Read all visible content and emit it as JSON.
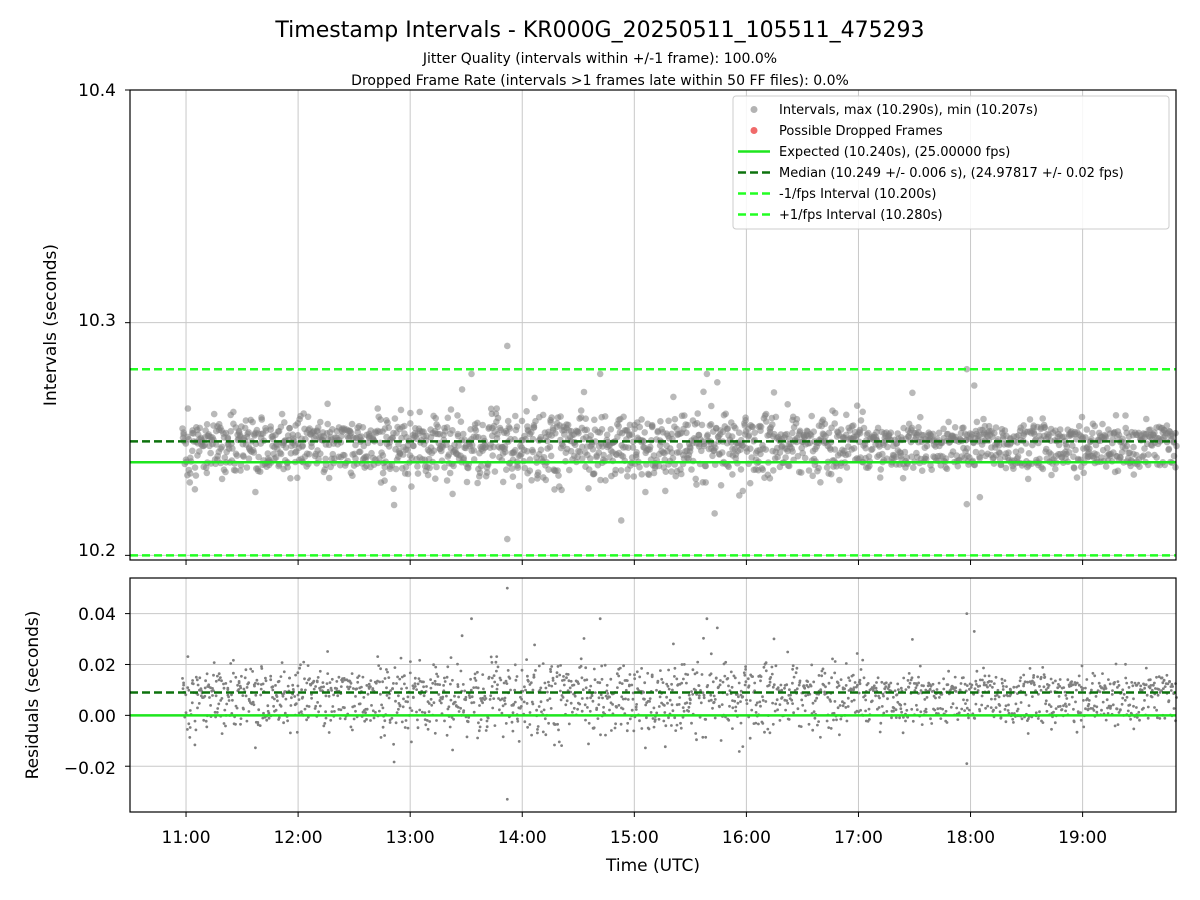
{
  "chart_data": [
    {
      "type": "scatter",
      "title": "Timestamp Intervals - KR000G_20250511_105511_475293",
      "subtitle_1": "Jitter Quality (intervals within +/-1 frame): 100.0%",
      "subtitle_2": "Dropped Frame Rate (intervals >1 frames late within 50 FF files): 0.0%",
      "ylabel": "Intervals (seconds)",
      "ylim": [
        10.198,
        10.4
      ],
      "yticks": [
        "10.2",
        "10.3",
        "10.4"
      ],
      "xlim": [
        "10:30",
        "19:50"
      ],
      "grid": true,
      "legend_position": "upper right",
      "legend": [
        "Intervals, max (10.290s), min (10.207s)",
        "Possible Dropped Frames",
        "Expected (10.240s), (25.00000 fps)",
        "Median (10.249 +/- 0.006 s), (24.97817 +/- 0.02 fps)",
        "-1/fps Interval (10.200s)",
        "+1/fps Interval (10.280s)"
      ],
      "reference_lines": {
        "expected": 10.24,
        "median": 10.249,
        "minus_1fps": 10.2,
        "plus_1fps": 10.28
      },
      "series": [
        {
          "name": "Intervals, max (10.290s), min (10.207s)",
          "color": "#808080",
          "start_time": "10:58",
          "end_time": "19:50",
          "approx_mean": 10.249,
          "approx_spread": 0.006,
          "max": 10.29,
          "min": 10.207,
          "notable_points": [
            {
              "x": "13:52",
              "y": 10.29
            },
            {
              "x": "13:52",
              "y": 10.207
            },
            {
              "x": "17:58",
              "y": 10.28
            },
            {
              "x": "17:58",
              "y": 10.222
            },
            {
              "x": "18:02",
              "y": 10.273
            },
            {
              "x": "18:05",
              "y": 10.225
            },
            {
              "x": "14:53",
              "y": 10.215
            },
            {
              "x": "15:43",
              "y": 10.218
            }
          ]
        },
        {
          "name": "Possible Dropped Frames",
          "color": "#f06a6a",
          "points": []
        }
      ]
    },
    {
      "type": "scatter",
      "ylabel": "Residuals (seconds)",
      "xlabel": "Time (UTC)",
      "ylim": [
        -0.038,
        0.054
      ],
      "yticks": [
        "−0.02",
        "0.00",
        "0.02",
        "0.04"
      ],
      "xticks": [
        "11:00",
        "12:00",
        "13:00",
        "14:00",
        "15:00",
        "16:00",
        "17:00",
        "18:00",
        "19:00"
      ],
      "grid": true,
      "reference_lines": {
        "zero": 0.0,
        "median_residual": 0.009
      },
      "series": [
        {
          "color": "#808080",
          "approx_mean": 0.009,
          "approx_spread": 0.006,
          "max": 0.05,
          "min": -0.033,
          "notable_points": [
            {
              "x": "13:52",
              "y": 0.05
            },
            {
              "x": "13:52",
              "y": -0.033
            },
            {
              "x": "17:58",
              "y": 0.04
            },
            {
              "x": "18:02",
              "y": 0.033
            },
            {
              "x": "17:58",
              "y": -0.019
            }
          ]
        }
      ]
    }
  ],
  "colors": {
    "expected": "#1ee61e",
    "median": "#0d720d",
    "fps_interval": "#22ff22",
    "points": "#808080",
    "dropped": "#f06a6a",
    "grid": "#c8c8c8"
  }
}
